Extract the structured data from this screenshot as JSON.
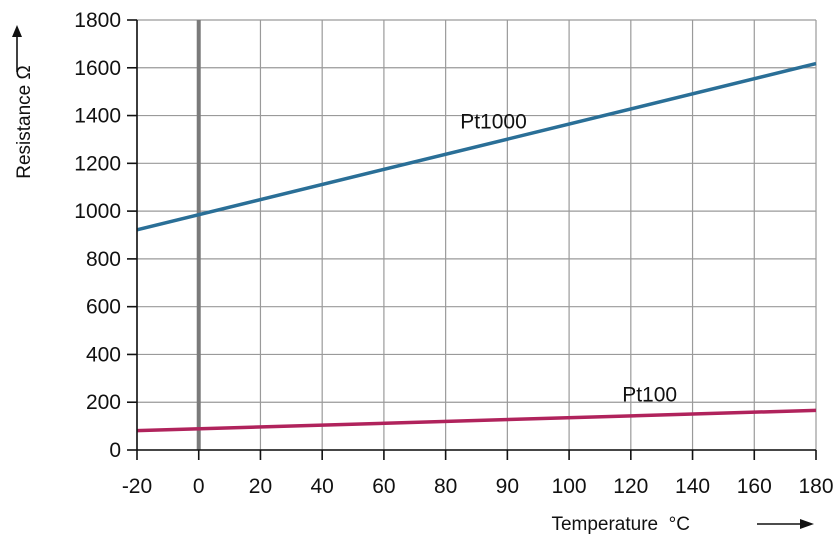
{
  "chart_data": {
    "type": "line",
    "x_ticks": [
      "-20",
      "0",
      "20",
      "40",
      "60",
      "80",
      "90",
      "100",
      "120",
      "140",
      "160",
      "180"
    ],
    "y_ticks": [
      0,
      200,
      400,
      600,
      800,
      1000,
      1200,
      1400,
      1600,
      1800
    ],
    "ylim": [
      0,
      1800
    ],
    "xlabel": "Temperature  °C",
    "ylabel": "Resistance  Ω",
    "grid": true,
    "zero_line_emphasized": true,
    "series": [
      {
        "name": "Pt1000",
        "color": "#2a6f97",
        "x": [
          -20,
          180
        ],
        "y": [
          921.6,
          1617.5
        ]
      },
      {
        "name": "Pt100",
        "color": "#b0235c",
        "x": [
          -20,
          180
        ],
        "y": [
          81.0,
          166.0
        ]
      }
    ]
  },
  "colors": {
    "grid": "#9a9a9a",
    "axis": "#111111",
    "zero_line": "#7a7a7a"
  }
}
